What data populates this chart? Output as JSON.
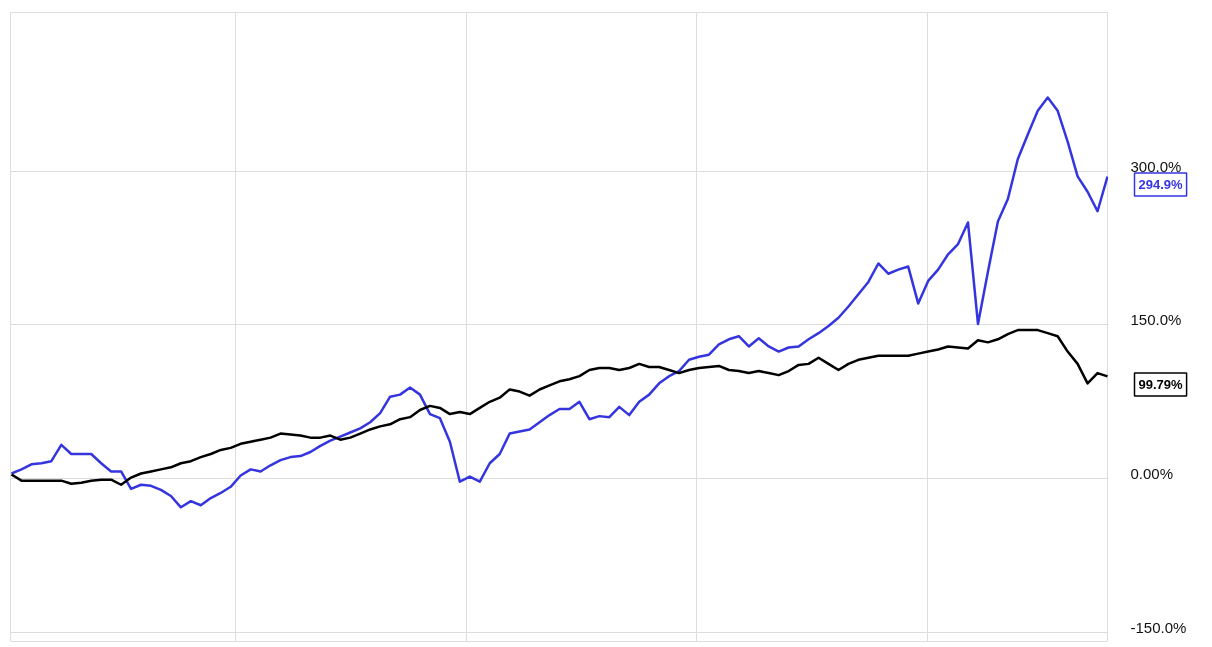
{
  "chart_data": {
    "type": "line",
    "categories": [
      null,
      null,
      null,
      null,
      null,
      null,
      null,
      null,
      null,
      null,
      null,
      null,
      null,
      null,
      null,
      null,
      null,
      null,
      null,
      null,
      null,
      null,
      null,
      null,
      null,
      null,
      null,
      null,
      null,
      null,
      null,
      null,
      null,
      null,
      null,
      null,
      null,
      null,
      null,
      null,
      null,
      null,
      null,
      null,
      null,
      null,
      null,
      null,
      null,
      null,
      null,
      null,
      null,
      null,
      null,
      null,
      null,
      null,
      null,
      null,
      null,
      null,
      null,
      null,
      null,
      null,
      null,
      null,
      null,
      null,
      null,
      null,
      null,
      null,
      null,
      null,
      null,
      null,
      null,
      null,
      null,
      null,
      null,
      null,
      null,
      null,
      null,
      null,
      null,
      null,
      null,
      null,
      null,
      null,
      null,
      null,
      null,
      null,
      null,
      null,
      null,
      null,
      null,
      null,
      null,
      null,
      null,
      null,
      null,
      null,
      null
    ],
    "ylim": [
      -159,
      455
    ],
    "yticks": [
      {
        "value": -150,
        "label": "-150.0%"
      },
      {
        "value": 0,
        "label": "0.00%"
      },
      {
        "value": 150,
        "label": "150.0%"
      },
      {
        "value": 300,
        "label": "300.0%"
      }
    ],
    "grid": true,
    "series": [
      {
        "color": "#3535e0",
        "values": [
          5,
          9,
          14,
          15,
          17,
          33,
          24,
          24,
          24,
          15,
          7,
          7,
          -10,
          -6,
          -7,
          -11,
          -17,
          -28,
          -22,
          -26,
          -19,
          -14,
          -8,
          3,
          9,
          7,
          13,
          18,
          21,
          22,
          26,
          32,
          37,
          41,
          45,
          49,
          55,
          64,
          80,
          82,
          89,
          82,
          63,
          59,
          36,
          -3,
          2,
          -3,
          15,
          24,
          44,
          46,
          48,
          55,
          62,
          68,
          68,
          75,
          58,
          61,
          60,
          70,
          62,
          75,
          82,
          93,
          100,
          105,
          116,
          119,
          121,
          131,
          136,
          139,
          129,
          137,
          129,
          124,
          128,
          129,
          136,
          142,
          149,
          157,
          168,
          180,
          192,
          210,
          200,
          204,
          207,
          171,
          193,
          204,
          219,
          229,
          250,
          151,
          202,
          251,
          273,
          312,
          336,
          359,
          372,
          359,
          329,
          295,
          280,
          261,
          294.9
        ]
      },
      {
        "color": "#000000",
        "values": [
          4,
          -2,
          -2,
          -2,
          -2,
          -2,
          -5,
          -4,
          -2,
          -1,
          -1,
          -6,
          1,
          5,
          7,
          9,
          11,
          15,
          17,
          21,
          24,
          28,
          30,
          34,
          36,
          38,
          40,
          44,
          43,
          42,
          40,
          40,
          42,
          38,
          40,
          44,
          48,
          51,
          53,
          58,
          60,
          67,
          71,
          69,
          63,
          65,
          63,
          69,
          75,
          79,
          87,
          85,
          81,
          87,
          91,
          95,
          97,
          100,
          106,
          108,
          108,
          106,
          108,
          112,
          109,
          109,
          106,
          103,
          106,
          108,
          109,
          110,
          106,
          105,
          103,
          105,
          103,
          101,
          105,
          111,
          112,
          118,
          112,
          106,
          112,
          116,
          118,
          120,
          120,
          120,
          120,
          122,
          124,
          126,
          129,
          128,
          127,
          135,
          133,
          136,
          141,
          145,
          145,
          145,
          142,
          139,
          124,
          112,
          93,
          103,
          99.79
        ]
      }
    ],
    "annotations": [
      "294.9%",
      "99.79%"
    ]
  }
}
